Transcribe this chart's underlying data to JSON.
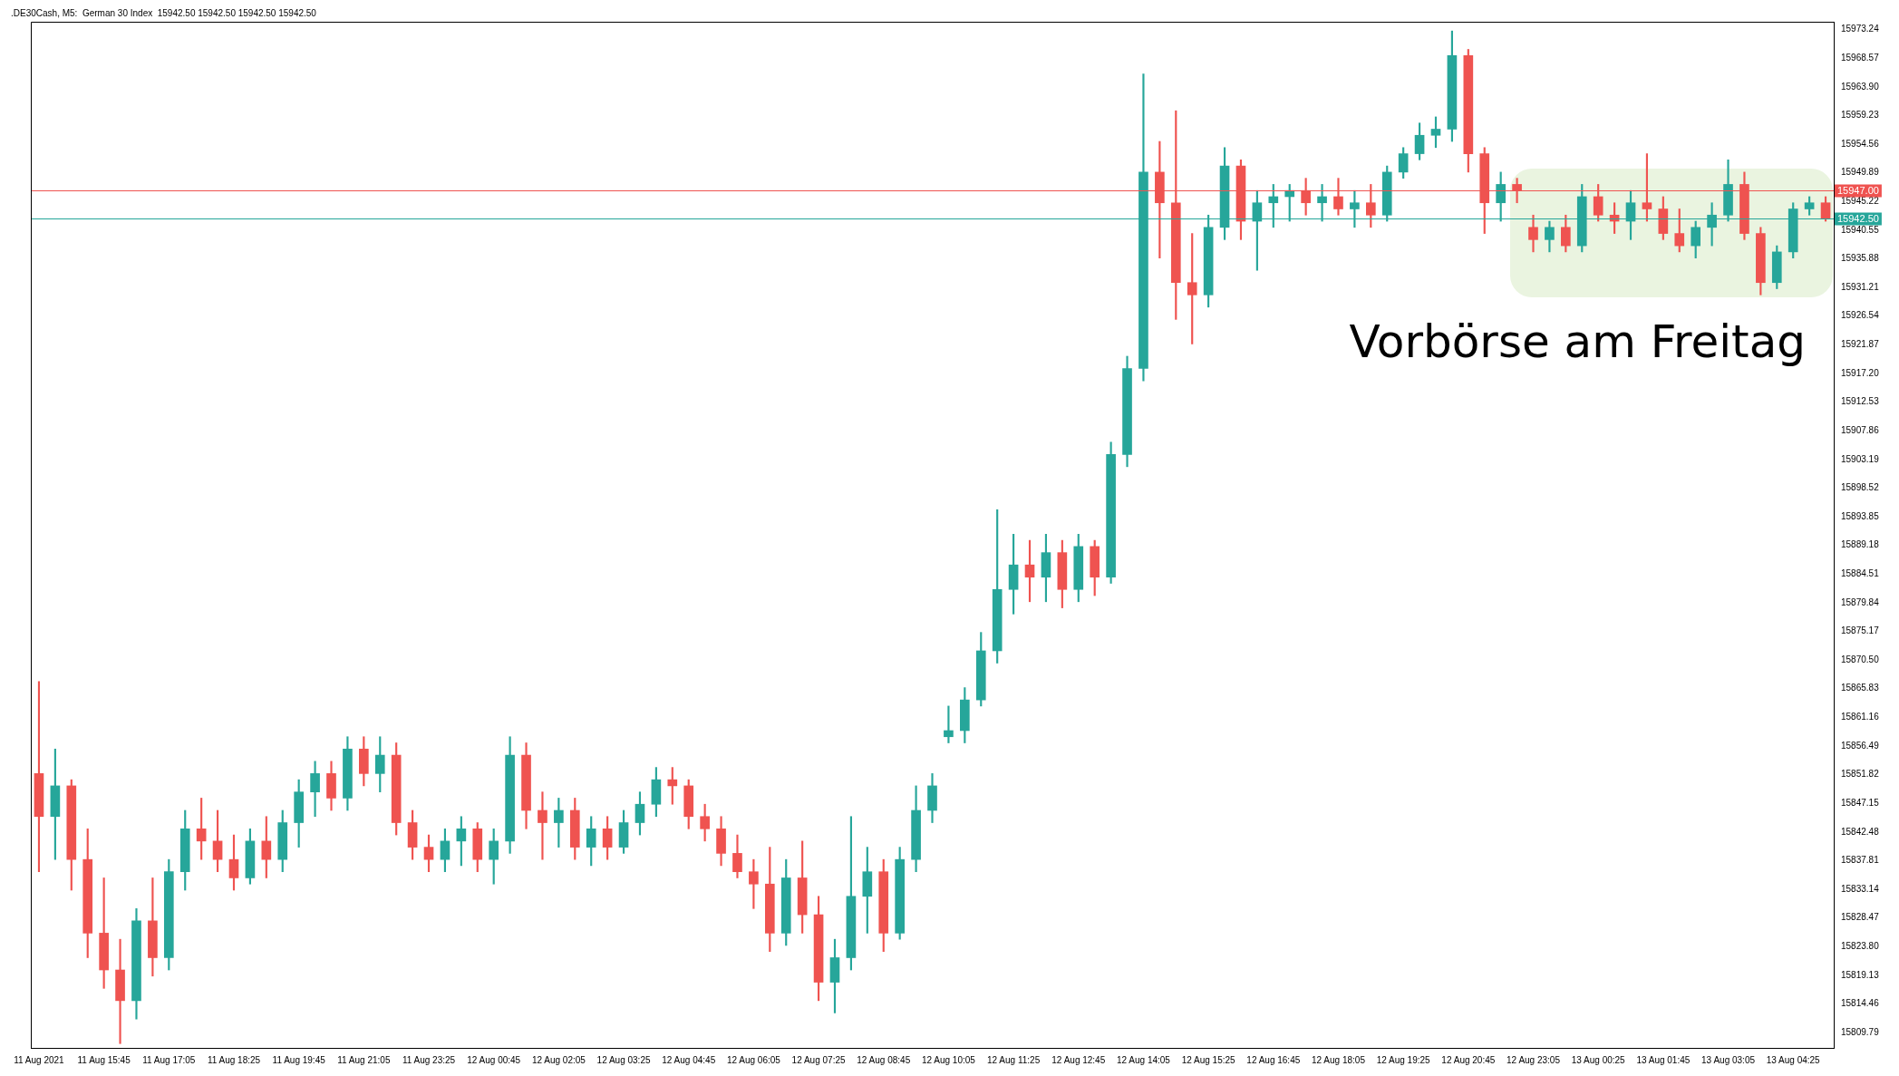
{
  "chart_data": {
    "type": "candlestick",
    "title": ".DE30Cash, M5:  German 30 Index  15942.50 15942.50 15942.50 15942.50",
    "categories": [
      "11 Aug 2021",
      null,
      null,
      null,
      "11 Aug 15:45",
      null,
      null,
      null,
      "11 Aug 17:05",
      null,
      null,
      null,
      "11 Aug 18:25",
      null,
      null,
      null,
      "11 Aug 19:45",
      null,
      null,
      null,
      "11 Aug 21:05",
      null,
      null,
      null,
      "11 Aug 23:25",
      null,
      null,
      null,
      "12 Aug 00:45",
      null,
      null,
      null,
      "12 Aug 02:05",
      null,
      null,
      null,
      "12 Aug 03:25",
      null,
      null,
      null,
      "12 Aug 04:45",
      null,
      null,
      null,
      "12 Aug 06:05",
      null,
      null,
      null,
      "12 Aug 07:25",
      null,
      null,
      null,
      "12 Aug 08:45",
      null,
      null,
      null,
      "12 Aug 10:05",
      null,
      null,
      null,
      "12 Aug 11:25",
      null,
      null,
      null,
      "12 Aug 12:45",
      null,
      null,
      null,
      "12 Aug 14:05",
      null,
      null,
      null,
      "12 Aug 15:25",
      null,
      null,
      null,
      "12 Aug 16:45",
      null,
      null,
      null,
      "12 Aug 18:05",
      null,
      null,
      null,
      "12 Aug 19:25",
      null,
      null,
      null,
      "12 Aug 20:45",
      null,
      null,
      null,
      "12 Aug 23:05",
      null,
      null,
      null,
      "13 Aug 00:25",
      null,
      null,
      null,
      "13 Aug 01:45",
      null,
      null,
      null,
      "13 Aug 03:05",
      null,
      null,
      null,
      "13 Aug 04:25",
      null,
      null
    ],
    "ohlc": [
      [
        15852,
        15867,
        15836,
        15845
      ],
      [
        15845,
        15856,
        15838,
        15850
      ],
      [
        15850,
        15851,
        15833,
        15838
      ],
      [
        15838,
        15843,
        15822,
        15826
      ],
      [
        15826,
        15835,
        15817,
        15820
      ],
      [
        15820,
        15825,
        15808,
        15815
      ],
      [
        15815,
        15830,
        15812,
        15828
      ],
      [
        15828,
        15835,
        15819,
        15822
      ],
      [
        15822,
        15838,
        15820,
        15836
      ],
      [
        15836,
        15846,
        15833,
        15843
      ],
      [
        15843,
        15848,
        15838,
        15841
      ],
      [
        15841,
        15846,
        15836,
        15838
      ],
      [
        15838,
        15842,
        15833,
        15835
      ],
      [
        15835,
        15843,
        15834,
        15841
      ],
      [
        15841,
        15845,
        15835,
        15838
      ],
      [
        15838,
        15846,
        15836,
        15844
      ],
      [
        15844,
        15851,
        15840,
        15849
      ],
      [
        15849,
        15854,
        15845,
        15852
      ],
      [
        15852,
        15854,
        15846,
        15848
      ],
      [
        15848,
        15858,
        15846,
        15856
      ],
      [
        15856,
        15858,
        15850,
        15852
      ],
      [
        15852,
        15858,
        15849,
        15855
      ],
      [
        15855,
        15857,
        15842,
        15844
      ],
      [
        15844,
        15846,
        15838,
        15840
      ],
      [
        15840,
        15842,
        15836,
        15838
      ],
      [
        15838,
        15843,
        15836,
        15841
      ],
      [
        15841,
        15845,
        15837,
        15843
      ],
      [
        15843,
        15844,
        15836,
        15838
      ],
      [
        15838,
        15843,
        15834,
        15841
      ],
      [
        15841,
        15858,
        15839,
        15855
      ],
      [
        15855,
        15857,
        15843,
        15846
      ],
      [
        15846,
        15849,
        15838,
        15844
      ],
      [
        15844,
        15848,
        15840,
        15846
      ],
      [
        15846,
        15848,
        15838,
        15840
      ],
      [
        15840,
        15845,
        15837,
        15843
      ],
      [
        15843,
        15845,
        15838,
        15840
      ],
      [
        15840,
        15846,
        15839,
        15844
      ],
      [
        15844,
        15849,
        15842,
        15847
      ],
      [
        15847,
        15853,
        15845,
        15851
      ],
      [
        15851,
        15853,
        15847,
        15850
      ],
      [
        15850,
        15851,
        15843,
        15845
      ],
      [
        15845,
        15847,
        15841,
        15843
      ],
      [
        15843,
        15845,
        15837,
        15839
      ],
      [
        15839,
        15842,
        15835,
        15836
      ],
      [
        15836,
        15838,
        15830,
        15834
      ],
      [
        15834,
        15840,
        15823,
        15826
      ],
      [
        15826,
        15838,
        15824,
        15835
      ],
      [
        15835,
        15841,
        15826,
        15829
      ],
      [
        15829,
        15832,
        15815,
        15818
      ],
      [
        15818,
        15825,
        15813,
        15822
      ],
      [
        15822,
        15845,
        15820,
        15832
      ],
      [
        15832,
        15840,
        15826,
        15836
      ],
      [
        15836,
        15838,
        15823,
        15826
      ],
      [
        15826,
        15840,
        15825,
        15838
      ],
      [
        15838,
        15850,
        15836,
        15846
      ],
      [
        15846,
        15852,
        15844,
        15850
      ],
      [
        15858,
        15863,
        15857,
        15859
      ],
      [
        15859,
        15866,
        15857,
        15864
      ],
      [
        15864,
        15875,
        15863,
        15872
      ],
      [
        15872,
        15895,
        15870,
        15882
      ],
      [
        15882,
        15891,
        15878,
        15886
      ],
      [
        15886,
        15890,
        15880,
        15884
      ],
      [
        15884,
        15891,
        15880,
        15888
      ],
      [
        15888,
        15890,
        15879,
        15882
      ],
      [
        15882,
        15891,
        15880,
        15889
      ],
      [
        15889,
        15890,
        15881,
        15884
      ],
      [
        15884,
        15906,
        15883,
        15904
      ],
      [
        15904,
        15920,
        15902,
        15918
      ],
      [
        15918,
        15966,
        15916,
        15950
      ],
      [
        15950,
        15955,
        15936,
        15945
      ],
      [
        15945,
        15960,
        15926,
        15932
      ],
      [
        15932,
        15940,
        15922,
        15930
      ],
      [
        15930,
        15943,
        15928,
        15941
      ],
      [
        15941,
        15954,
        15939,
        15951
      ],
      [
        15951,
        15952,
        15939,
        15942
      ],
      [
        15942,
        15947,
        15934,
        15945
      ],
      [
        15945,
        15948,
        15941,
        15946
      ],
      [
        15946,
        15948,
        15942,
        15947
      ],
      [
        15947,
        15949,
        15943,
        15945
      ],
      [
        15945,
        15948,
        15942,
        15946
      ],
      [
        15946,
        15949,
        15943,
        15944
      ],
      [
        15944,
        15947,
        15941,
        15945
      ],
      [
        15945,
        15948,
        15941,
        15943
      ],
      [
        15943,
        15951,
        15942,
        15950
      ],
      [
        15950,
        15954,
        15949,
        15953
      ],
      [
        15953,
        15958,
        15952,
        15956
      ],
      [
        15956,
        15959,
        15954,
        15957
      ],
      [
        15957,
        15973,
        15955,
        15969
      ],
      [
        15969,
        15970,
        15950,
        15953
      ],
      [
        15953,
        15954,
        15940,
        15945
      ],
      [
        15945,
        15950,
        15942,
        15948
      ],
      [
        15948,
        15949,
        15945,
        15947
      ],
      [
        15941,
        15943,
        15937,
        15939
      ],
      [
        15939,
        15942,
        15937,
        15941
      ],
      [
        15941,
        15943,
        15937,
        15938
      ],
      [
        15938,
        15948,
        15937,
        15946
      ],
      [
        15946,
        15948,
        15942,
        15943
      ],
      [
        15943,
        15945,
        15940,
        15942
      ],
      [
        15942,
        15947,
        15939,
        15945
      ],
      [
        15945,
        15953,
        15942,
        15944
      ],
      [
        15944,
        15946,
        15939,
        15940
      ],
      [
        15940,
        15944,
        15937,
        15938
      ],
      [
        15938,
        15942,
        15936,
        15941
      ],
      [
        15941,
        15945,
        15938,
        15943
      ],
      [
        15943,
        15952,
        15942,
        15948
      ],
      [
        15948,
        15950,
        15939,
        15940
      ],
      [
        15940,
        15941,
        15930,
        15932
      ],
      [
        15932,
        15938,
        15931,
        15937
      ],
      [
        15937,
        15945,
        15936,
        15944
      ],
      [
        15944,
        15946,
        15943,
        15945
      ],
      [
        15945,
        15946,
        15942,
        15942.5
      ]
    ],
    "colors": [
      "#ef5350",
      "#26a69a",
      "#ef5350",
      "#ef5350",
      "#ef5350",
      "#ef5350",
      "#26a69a",
      "#ef5350",
      "#26a69a",
      "#26a69a",
      "#ef5350",
      "#ef5350",
      "#ef5350",
      "#26a69a",
      "#ef5350",
      "#26a69a",
      "#26a69a",
      "#26a69a",
      "#ef5350",
      "#26a69a",
      "#ef5350",
      "#26a69a",
      "#ef5350",
      "#ef5350",
      "#ef5350",
      "#26a69a",
      "#26a69a",
      "#ef5350",
      "#26a69a",
      "#26a69a",
      "#ef5350",
      "#ef5350",
      "#26a69a",
      "#ef5350",
      "#26a69a",
      "#ef5350",
      "#26a69a",
      "#26a69a",
      "#26a69a",
      "#ef5350",
      "#ef5350",
      "#ef5350",
      "#ef5350",
      "#ef5350",
      "#ef5350",
      "#ef5350",
      "#26a69a",
      "#ef5350",
      "#ef5350",
      "#26a69a",
      "#26a69a",
      "#26a69a",
      "#ef5350",
      "#26a69a",
      "#26a69a",
      "#26a69a",
      "#26a69a",
      "#26a69a",
      "#26a69a",
      "#26a69a",
      "#26a69a",
      "#ef5350",
      "#26a69a",
      "#ef5350",
      "#26a69a",
      "#ef5350",
      "#26a69a",
      "#26a69a",
      "#26a69a",
      "#ef5350",
      "#ef5350",
      "#ef5350",
      "#26a69a",
      "#26a69a",
      "#ef5350",
      "#26a69a",
      "#26a69a",
      "#26a69a",
      "#ef5350",
      "#26a69a",
      "#ef5350",
      "#26a69a",
      "#ef5350",
      "#26a69a",
      "#26a69a",
      "#26a69a",
      "#26a69a",
      "#26a69a",
      "#ef5350",
      "#ef5350",
      "#26a69a",
      "#ef5350",
      "#ef5350",
      "#26a69a",
      "#ef5350",
      "#26a69a",
      "#ef5350",
      "#ef5350",
      "#26a69a",
      "#ef5350",
      "#ef5350",
      "#ef5350",
      "#26a69a",
      "#26a69a",
      "#26a69a",
      "#ef5350",
      "#ef5350",
      "#26a69a",
      "#26a69a",
      "#26a69a",
      "#ef5350"
    ],
    "ylim": [
      15807.3,
      15974.5
    ],
    "yticks": [
      15809.79,
      15814.46,
      15819.13,
      {
        "value": 15823.8,
        "label": "15823.80"
      },
      15828.47,
      15833.14,
      15837.81,
      15842.48,
      15847.15,
      15851.82,
      15856.49,
      15861.16,
      15865.83,
      {
        "value": 15870.5,
        "label": "15870.50"
      },
      15875.17,
      15879.84,
      15884.51,
      15889.18,
      15893.85,
      15898.52,
      15903.19,
      15907.86,
      15912.53,
      {
        "value": 15917.2,
        "label": "15917.20"
      },
      15921.87,
      15926.54,
      15931.21,
      15935.88,
      15940.55,
      15945.22,
      15949.89,
      15954.56,
      15959.23,
      {
        "value": 15963.9,
        "label": "15963.90"
      },
      15968.57,
      15973.24
    ],
    "ref_lines": [
      {
        "axis": "y",
        "value": 15947,
        "label": "15947.00",
        "color": "#ef5350"
      },
      {
        "axis": "y",
        "value": 15942.5,
        "label": "15942.50",
        "color": "#26a69a"
      }
    ],
    "annotations": [
      "Vorbörse am Freitag"
    ],
    "grid": false,
    "legend": false
  }
}
